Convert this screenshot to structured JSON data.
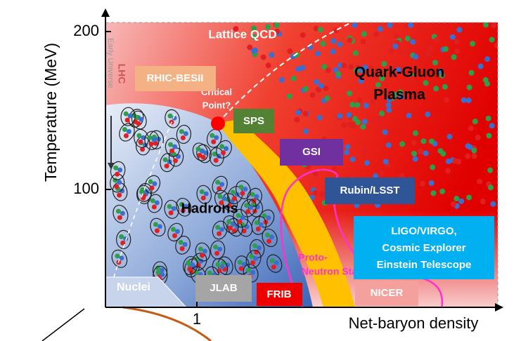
{
  "axes": {
    "y_label": "Temperature (MeV)",
    "x_label": "Net-baryon density",
    "y_ticks": [
      "200",
      "100"
    ],
    "x_ticks": [
      "1"
    ]
  },
  "regions": {
    "lattice": "Lattice QCD",
    "lhc": "LHC",
    "early_universe": "Early Universe",
    "qgp": [
      "Quark-Gluon",
      "Plasma"
    ],
    "hadrons": "Hadrons",
    "nuclei": "Nuclei",
    "critical_point": [
      "Critical",
      "Point?"
    ],
    "proto_neutron_stars": [
      "Proto-",
      "Neutron Stars"
    ]
  },
  "facilities": {
    "rhic": "RHIC-BESII",
    "sps": "SPS",
    "gsi": "GSI",
    "rubin": "Rubin/LSST",
    "ligo": [
      "LIGO/VIRGO,",
      "Cosmic Explorer",
      "Einstein Telescope"
    ],
    "jlab": "JLAB",
    "frib": "FRIB",
    "nicer": "NICER"
  }
}
